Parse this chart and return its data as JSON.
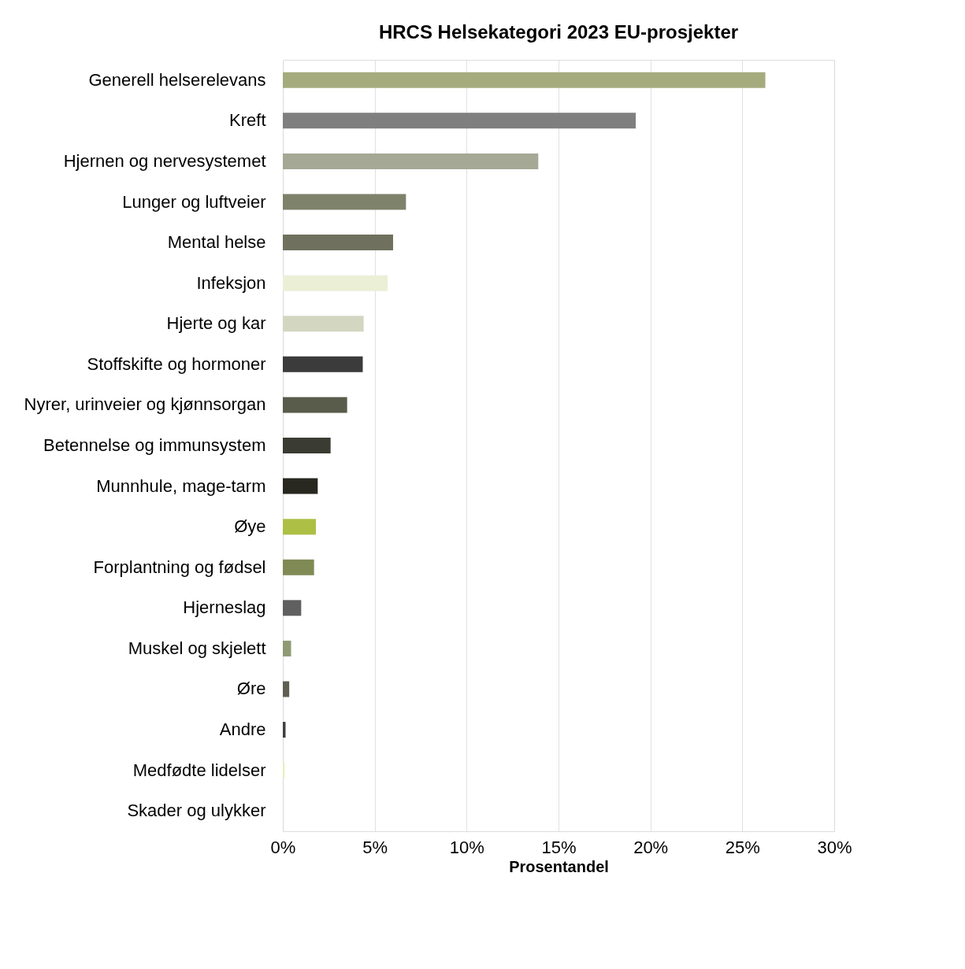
{
  "chart_data": {
    "type": "bar",
    "orientation": "horizontal",
    "title": "HRCS Helsekategori 2023 EU-prosjekter",
    "xlabel": "Prosentandel",
    "categories": [
      "Generell helserelevans",
      "Kreft",
      "Hjernen og nervesystemet",
      "Lunger og luftveier",
      "Mental helse",
      "Infeksjon",
      "Hjerte og kar",
      "Stoffskifte og hormoner",
      "Nyrer, urinveier og kjønnsorgan",
      "Betennelse og immunsystem",
      "Munnhule, mage-tarm",
      "Øye",
      "Forplantning og fødsel",
      "Hjerneslag",
      "Muskel og skjelett",
      "Øre",
      "Andre",
      "Medfødte lidelser",
      "Skader og ulykker"
    ],
    "values": [
      26.25,
      19.2,
      13.9,
      6.7,
      6.0,
      5.7,
      4.4,
      4.35,
      3.5,
      2.6,
      1.9,
      1.8,
      1.7,
      1.0,
      0.45,
      0.35,
      0.15,
      0.1,
      0
    ],
    "colors": [
      "#a5ab7d",
      "#7f7f7f",
      "#a5a895",
      "#7f826a",
      "#6f705d",
      "#ebefd6",
      "#d3d6c0",
      "#3b3b3b",
      "#595b4b",
      "#3a3c33",
      "#282820",
      "#adbf45",
      "#7f8a55",
      "#606060",
      "#8f9a75",
      "#5f6050",
      "#3f3f3f",
      "#e8eec0",
      "#cccccc"
    ],
    "xlim": [
      0,
      30
    ],
    "xticks": [
      {
        "value": 0,
        "label": "0%"
      },
      {
        "value": 5,
        "label": "5%"
      },
      {
        "value": 10,
        "label": "10%"
      },
      {
        "value": 15,
        "label": "15%"
      },
      {
        "value": 20,
        "label": "20%"
      },
      {
        "value": 25,
        "label": "25%"
      },
      {
        "value": 30,
        "label": "30%"
      }
    ],
    "grid": "x",
    "legend": false
  }
}
